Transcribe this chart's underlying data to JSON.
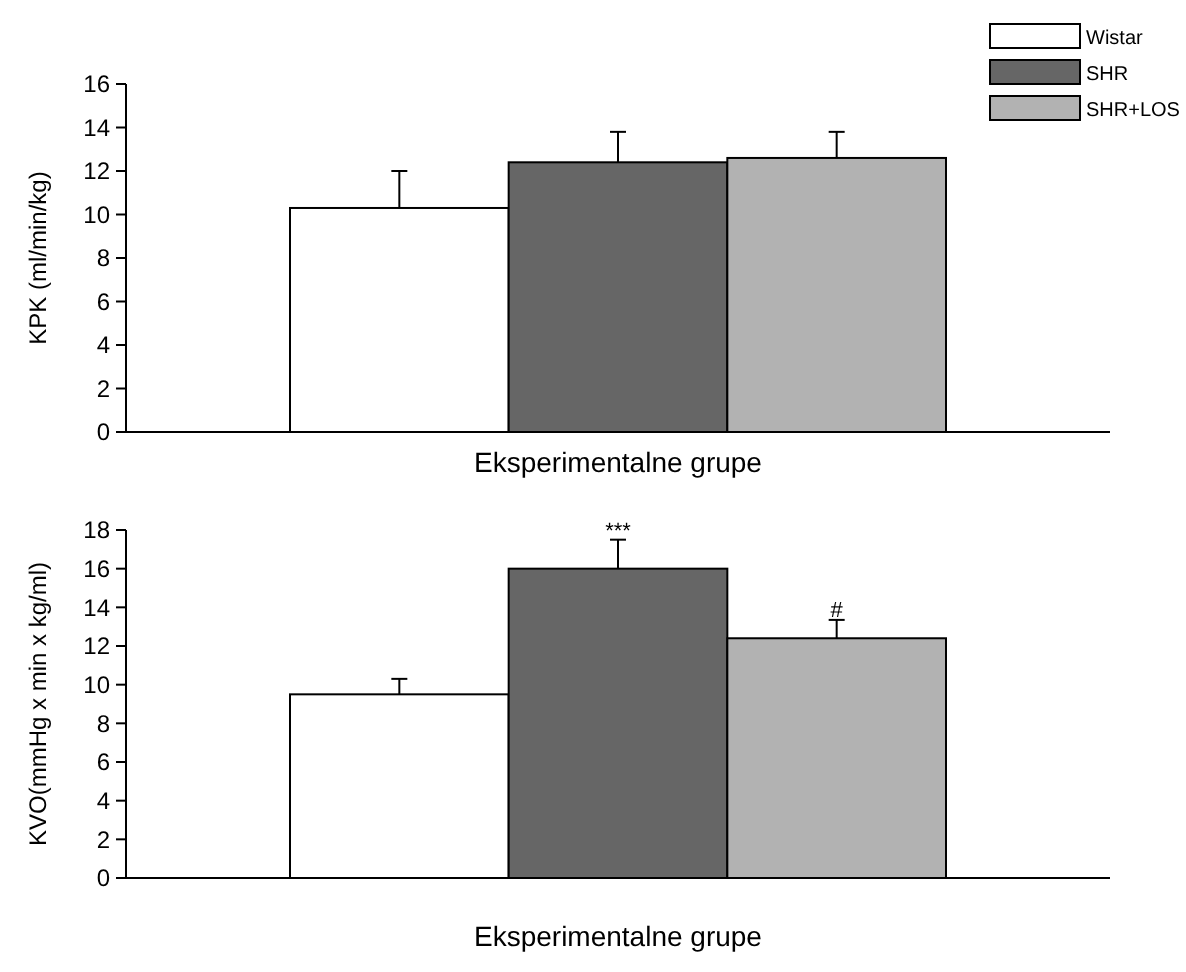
{
  "chart_data": [
    {
      "type": "bar",
      "categories": [
        null
      ],
      "xlabel": "Eksperimentalne grupe",
      "ylabel": "KPK (ml/min/kg)",
      "ylim": [
        0,
        16
      ],
      "yticks": [
        0,
        2,
        4,
        6,
        8,
        10,
        12,
        14,
        16
      ],
      "legend": "top right",
      "series": [
        {
          "name": "Wistar",
          "color": "#ffffff",
          "values": [
            10.3
          ],
          "errors": [
            [
              10.3,
              12.0
            ]
          ]
        },
        {
          "name": "SHR",
          "color": "#666666",
          "values": [
            12.4
          ],
          "errors": [
            [
              12.4,
              13.8
            ]
          ]
        },
        {
          "name": "SHR+LOS",
          "color": "#b2b2b2",
          "values": [
            12.6
          ],
          "errors": [
            [
              12.6,
              13.8
            ]
          ]
        }
      ]
    },
    {
      "type": "bar",
      "categories": [
        null
      ],
      "xlabel": "Eksperimentalne grupe",
      "ylabel": "KVO(mmHg x min x kg/ml)",
      "ylim": [
        0,
        18
      ],
      "yticks": [
        0,
        2,
        4,
        6,
        8,
        10,
        12,
        14,
        16,
        18
      ],
      "series": [
        {
          "color": "#ffffff",
          "values": [
            9.5
          ],
          "errors": [
            [
              9.5,
              10.3
            ]
          ]
        },
        {
          "color": "#666666",
          "values": [
            16
          ],
          "errors": [
            [
              16,
              17.5
            ]
          ]
        },
        {
          "color": "#b2b2b2",
          "values": [
            12.4
          ],
          "errors": [
            [
              12.4,
              13.35
            ]
          ]
        }
      ],
      "annotations": [
        {
          "text": "***",
          "y": 17.6
        },
        {
          "text": "#",
          "y": 13.5
        }
      ]
    }
  ]
}
